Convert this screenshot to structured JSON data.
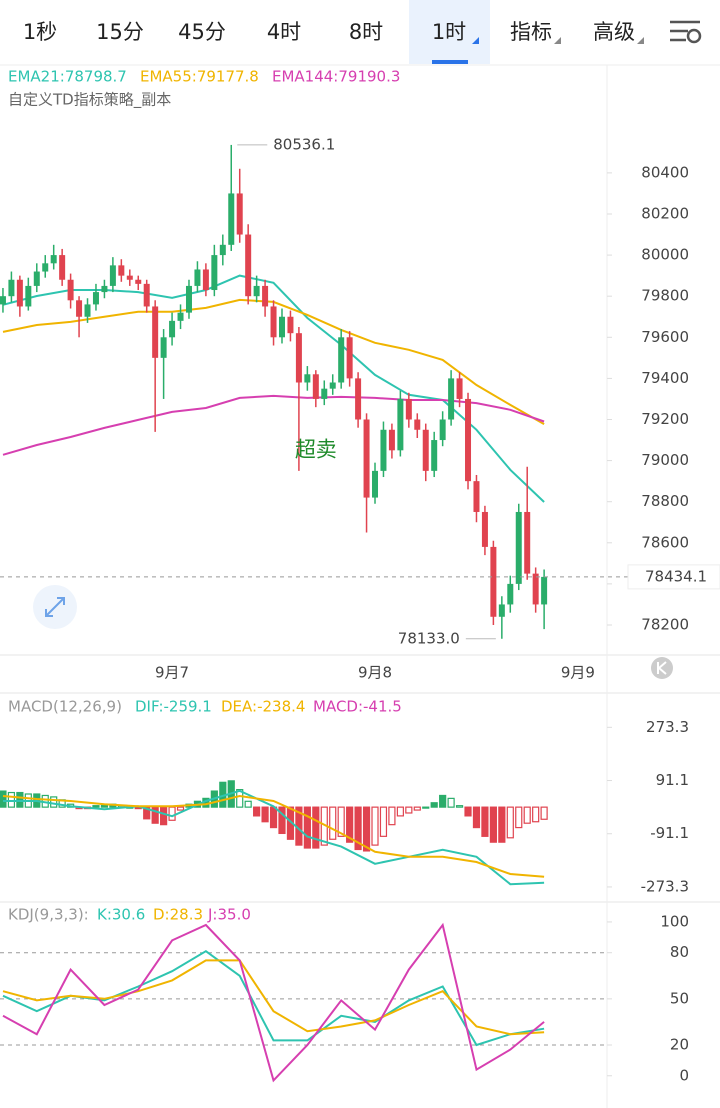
{
  "tabs": [
    "1秒",
    "15分",
    "45分",
    "4时",
    "8时",
    "1时",
    "指标",
    "高级"
  ],
  "active_tab": 5,
  "chart_data": [
    {
      "type": "candlestick",
      "legend": [
        {
          "text": "EMA21:78798.7",
          "color": "#2ec4b0"
        },
        {
          "text": "EMA55:79177.8",
          "color": "#f0b400"
        },
        {
          "text": "EMA144:79190.3",
          "color": "#d63fb0"
        }
      ],
      "subtitle": "自定义TD指标策略_副本",
      "annotation": {
        "text": "超卖",
        "index": 37,
        "value": 79050
      },
      "low_label": "78133.0",
      "up_color": "#2aad6a",
      "down_color": "#e0434f",
      "ohlc": [
        [
          79760,
          79840,
          79720,
          79800
        ],
        [
          79800,
          79920,
          79770,
          79880
        ],
        [
          79880,
          79900,
          79700,
          79750
        ],
        [
          79750,
          79890,
          79730,
          79850
        ],
        [
          79850,
          79960,
          79820,
          79920
        ],
        [
          79920,
          80000,
          79890,
          79960
        ],
        [
          79960,
          80050,
          79930,
          80000
        ],
        [
          80000,
          80030,
          79850,
          79880
        ],
        [
          79880,
          79910,
          79740,
          79780
        ],
        [
          79780,
          79800,
          79600,
          79700
        ],
        [
          79700,
          79790,
          79670,
          79760
        ],
        [
          79760,
          79860,
          79730,
          79820
        ],
        [
          79820,
          79880,
          79790,
          79850
        ],
        [
          79850,
          79990,
          79820,
          79950
        ],
        [
          79950,
          79980,
          79870,
          79900
        ],
        [
          79900,
          79930,
          79850,
          79880
        ],
        [
          79880,
          79900,
          79830,
          79860
        ],
        [
          79860,
          79880,
          79720,
          79750
        ],
        [
          79750,
          79780,
          79140,
          79500
        ],
        [
          79500,
          79640,
          79300,
          79600
        ],
        [
          79600,
          79720,
          79560,
          79680
        ],
        [
          79680,
          79760,
          79640,
          79720
        ],
        [
          79720,
          79880,
          79690,
          79850
        ],
        [
          79850,
          79970,
          79820,
          79930
        ],
        [
          79930,
          79960,
          79800,
          79830
        ],
        [
          79830,
          80050,
          79800,
          80000
        ],
        [
          80000,
          80100,
          79950,
          80050
        ],
        [
          80050,
          80536.1,
          80020,
          80300
        ],
        [
          80300,
          80420,
          80060,
          80100
        ],
        [
          80100,
          80150,
          79760,
          79800
        ],
        [
          79800,
          79900,
          79770,
          79850
        ],
        [
          79850,
          79880,
          79700,
          79750
        ],
        [
          79750,
          79780,
          79560,
          79600
        ],
        [
          79600,
          79740,
          79570,
          79700
        ],
        [
          79700,
          79730,
          79580,
          79620
        ],
        [
          79620,
          79650,
          78950,
          79380
        ],
        [
          79380,
          79460,
          79340,
          79420
        ],
        [
          79420,
          79440,
          79260,
          79300
        ],
        [
          79300,
          79390,
          79270,
          79350
        ],
        [
          79350,
          79420,
          79320,
          79380
        ],
        [
          79380,
          79640,
          79350,
          79600
        ],
        [
          79600,
          79630,
          79360,
          79400
        ],
        [
          79400,
          79430,
          79160,
          79200
        ],
        [
          79200,
          79230,
          78650,
          78820
        ],
        [
          78820,
          78990,
          78790,
          78950
        ],
        [
          78950,
          79190,
          78920,
          79150
        ],
        [
          79150,
          79180,
          79010,
          79050
        ],
        [
          79050,
          79340,
          79020,
          79300
        ],
        [
          79300,
          79330,
          79160,
          79200
        ],
        [
          79200,
          79230,
          79110,
          79150
        ],
        [
          79150,
          79180,
          78900,
          78950
        ],
        [
          78950,
          79140,
          78920,
          79100
        ],
        [
          79100,
          79240,
          79070,
          79200
        ],
        [
          79200,
          79440,
          79170,
          79400
        ],
        [
          79400,
          79430,
          79260,
          79300
        ],
        [
          79300,
          79330,
          78860,
          78900
        ],
        [
          78900,
          78930,
          78700,
          78750
        ],
        [
          78750,
          78780,
          78540,
          78580
        ],
        [
          78580,
          78610,
          78200,
          78240
        ],
        [
          78240,
          78340,
          78133,
          78300
        ],
        [
          78300,
          78440,
          78260,
          78400
        ],
        [
          78400,
          78790,
          78370,
          78750
        ],
        [
          78750,
          78970,
          78420,
          78450
        ],
        [
          78450,
          78480,
          78260,
          78300
        ],
        [
          78300,
          78470,
          78180,
          78434.1
        ]
      ],
      "line_x": [
        0,
        4,
        8,
        12,
        16,
        20,
        24,
        28,
        32,
        36,
        40,
        44,
        48,
        52,
        56,
        60,
        64
      ],
      "series": [
        {
          "name": "EMA21",
          "color": "#2ec4b0",
          "values": [
            79758,
            79801,
            79830,
            79830,
            79820,
            79792,
            79830,
            79900,
            79865,
            79694,
            79563,
            79417,
            79320,
            79295,
            79150,
            78955,
            78798.7
          ]
        },
        {
          "name": "EMA55",
          "color": "#f0b400",
          "values": [
            79626,
            79660,
            79675,
            79700,
            79724,
            79724,
            79743,
            79782,
            79772,
            79709,
            79636,
            79573,
            79539,
            79490,
            79368,
            79271,
            79177.8
          ]
        },
        {
          "name": "EMA144",
          "color": "#d63fb0",
          "values": [
            79028,
            79076,
            79115,
            79159,
            79198,
            79237,
            79256,
            79305,
            79315,
            79305,
            79310,
            79305,
            79295,
            79295,
            79280,
            79247,
            79190.3
          ]
        }
      ],
      "xlim": [
        -0.35,
        71.2
      ],
      "xticks": [
        {
          "value": 20,
          "label": "9月7"
        },
        {
          "value": 44,
          "label": "9月8"
        },
        {
          "value": 68,
          "label": "9月9"
        }
      ],
      "ylim": [
        78054,
        80925
      ],
      "yticks": [
        78200,
        78400,
        78600,
        78800,
        79000,
        79200,
        79400,
        79600,
        79800,
        80000,
        80200,
        80400
      ]
    },
    {
      "type": "macd",
      "legend": [
        {
          "text": "MACD(12,26,9)",
          "color": "#999999"
        },
        {
          "text": "DIF:-259.1",
          "color": "#2ec4b0"
        },
        {
          "text": "DEA:-238.4",
          "color": "#f0b400"
        },
        {
          "text": "MACD:-41.5",
          "color": "#d63fb0"
        }
      ],
      "up_color": "#2aad6a",
      "down_color": "#e0434f",
      "values": [
        55,
        50,
        50,
        45,
        45,
        40,
        35,
        25,
        10,
        -5,
        -5,
        5,
        10,
        10,
        5,
        0,
        -5,
        -40,
        -55,
        -60,
        -45,
        -10,
        10,
        20,
        30,
        55,
        85,
        90,
        60,
        20,
        -30,
        -50,
        -70,
        -90,
        -110,
        -130,
        -140,
        -140,
        -130,
        -110,
        -100,
        -120,
        -145,
        -150,
        -130,
        -100,
        -60,
        -30,
        -20,
        -10,
        0,
        15,
        40,
        30,
        5,
        -30,
        -70,
        -100,
        -120,
        -120,
        -105,
        -70,
        -55,
        -50,
        -41.5
      ],
      "line_x": [
        0,
        4,
        8,
        12,
        16,
        20,
        24,
        28,
        32,
        36,
        40,
        44,
        48,
        52,
        56,
        60,
        64
      ],
      "series": [
        {
          "name": "DIF",
          "color": "#2ec4b0",
          "values": [
            21,
            21,
            3,
            -7,
            3,
            -31,
            21,
            56,
            3,
            -101,
            -135,
            -194,
            -170,
            -146,
            -170,
            -264,
            -259.1
          ]
        },
        {
          "name": "DEA",
          "color": "#f0b400",
          "values": [
            38,
            28,
            21,
            10,
            3,
            3,
            10,
            38,
            21,
            -31,
            -90,
            -153,
            -170,
            -170,
            -188,
            -229,
            -238.4
          ]
        }
      ],
      "xlim": [
        -0.35,
        71.2
      ],
      "ylim": [
        -318,
        384
      ],
      "yticks": [
        273.3,
        91.1,
        -91.1,
        -273.3
      ]
    },
    {
      "type": "kdj",
      "legend": [
        {
          "text": "KDJ(9,3,3):",
          "color": "#999999"
        },
        {
          "text": "K:30.6",
          "color": "#2ec4b0"
        },
        {
          "text": "D:28.3",
          "color": "#f0b400"
        },
        {
          "text": "J:35.0",
          "color": "#d63fb0"
        }
      ],
      "line_x": [
        0,
        4,
        8,
        12,
        16,
        20,
        24,
        28,
        32,
        36,
        40,
        44,
        48,
        52,
        56,
        60,
        64
      ],
      "series": [
        {
          "name": "K",
          "color": "#2ec4b0",
          "values": [
            52,
            42,
            52,
            49,
            58,
            68,
            81,
            65,
            23,
            23,
            39,
            35,
            49,
            58,
            20,
            27,
            30.6
          ]
        },
        {
          "name": "D",
          "color": "#f0b400",
          "values": [
            55,
            49,
            52,
            50,
            55,
            62,
            75,
            75,
            42,
            29,
            32,
            36,
            46,
            55,
            32,
            27,
            28.3
          ]
        },
        {
          "name": "J",
          "color": "#d63fb0",
          "values": [
            39,
            27,
            69,
            46,
            56,
            88,
            98,
            75,
            -3,
            20,
            49,
            30,
            69,
            98,
            4,
            17,
            35
          ]
        }
      ],
      "levels": [
        80,
        50,
        20
      ],
      "xlim": [
        -0.35,
        71.2
      ],
      "ylim": [
        -19,
        111
      ],
      "yticks": [
        100,
        80,
        50,
        20,
        0
      ]
    }
  ]
}
